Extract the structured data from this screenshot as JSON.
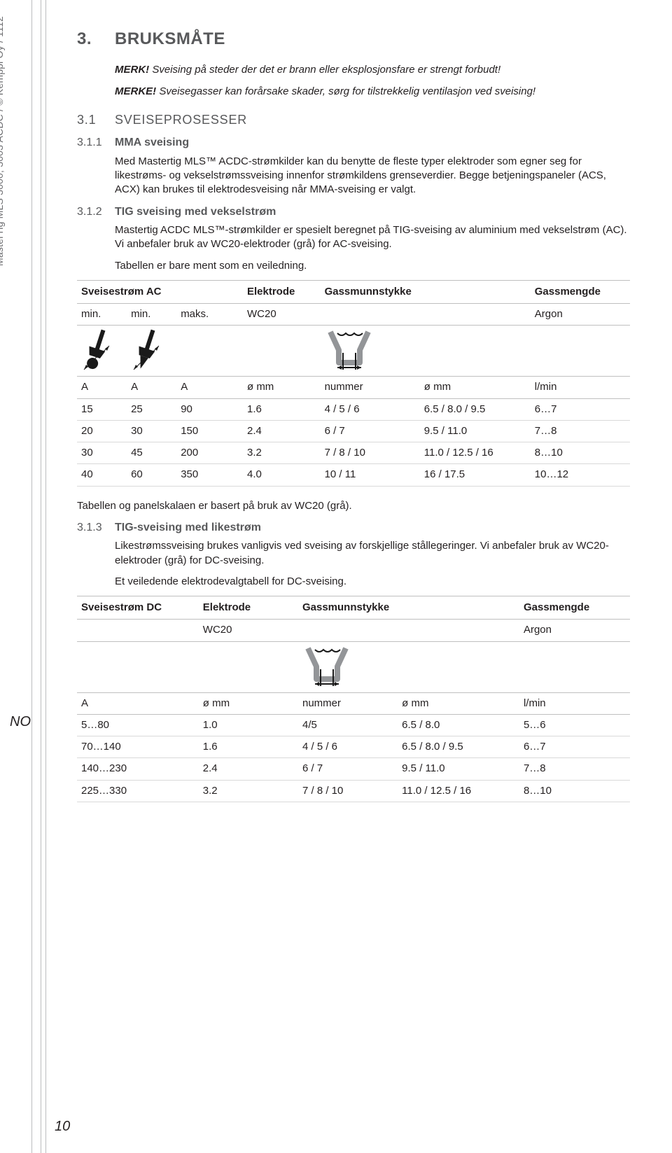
{
  "colors": {
    "text": "#231f20",
    "heading_gray": "#58595b",
    "rule": "#bbbcbe",
    "table_border": "#bfbfbf",
    "table_row_border": "#d9d9d9",
    "side_text": "#6d6e71",
    "icon_gray": "#939598",
    "icon_black": "#1a1a1a"
  },
  "side_text": "MasterTig MLS 3000, 3003 ACDC / © Kemppi Oy / 1112",
  "lang": "NO",
  "page_number": "10",
  "section": {
    "num": "3.",
    "title": "BRUKSMÅTE"
  },
  "note1": {
    "label": "MERK!",
    "text": "Sveising på steder der det er brann eller eksplosjonsfare er strengt forbudt!"
  },
  "note2": {
    "label": "MERKE!",
    "text": "Sveisegasser kan forårsake skader, sørg for tilstrekkelig ventilasjon ved sveising!"
  },
  "sub31": {
    "num": "3.1",
    "title": "SVEISEPROSESSER"
  },
  "sub311": {
    "num": "3.1.1",
    "title": "MMA sveising"
  },
  "p311": "Med Mastertig MLS™ ACDC-strømkilder kan du benytte de fleste typer elektroder som egner seg for likestrøms- og vekselstrømssveising innenfor strømkildens grenseverdier. Begge betjeningspaneler (ACS, ACX) kan brukes til elektrodesveising når MMA-sveising er valgt.",
  "sub312": {
    "num": "3.1.2",
    "title": "TIG sveising med vekselstrøm"
  },
  "p312a": "Mastertig ACDC MLS™-strømkilder er spesielt beregnet på TIG-sveising av aluminium med vekselstrøm (AC). Vi anbefaler bruk av WC20-elektroder (grå) for AC-sveising.",
  "p312b": "Tabellen er bare ment som en veiledning.",
  "tableAC": {
    "headers": [
      "Sveisestrøm AC",
      "Elektrode",
      "Gassmunnstykke",
      "Gassmengde"
    ],
    "sub": [
      "min.",
      "min.",
      "maks.",
      "WC20",
      "",
      "Argon"
    ],
    "units": [
      "A",
      "A",
      "A",
      "ø mm",
      "nummer",
      "ø mm",
      "l/min"
    ],
    "rows": [
      [
        "15",
        "25",
        "90",
        "1.6",
        "4 / 5 / 6",
        "6.5 / 8.0 / 9.5",
        "6…7"
      ],
      [
        "20",
        "30",
        "150",
        "2.4",
        "6 / 7",
        "9.5 / 11.0",
        "7…8"
      ],
      [
        "30",
        "45",
        "200",
        "3.2",
        "7 / 8 / 10",
        "11.0 / 12.5 / 16",
        "8…10"
      ],
      [
        "40",
        "60",
        "350",
        "4.0",
        "10 / 11",
        "16 / 17.5",
        "10…12"
      ]
    ],
    "col_widths": [
      "9%",
      "9%",
      "12%",
      "14%",
      "18%",
      "20%",
      "18%"
    ]
  },
  "p_between": "Tabellen og panelskalaen er basert på bruk av WC20 (grå).",
  "sub313": {
    "num": "3.1.3",
    "title": "TIG-sveising med likestrøm"
  },
  "p313a": "Likestrømssveising brukes vanligvis ved sveising av forskjellige stållegeringer. Vi anbefaler bruk av WC20-elektroder (grå) for DC-sveising.",
  "p313b": "Et veiledende elektrodevalgtabell for DC-sveising.",
  "tableDC": {
    "headers": [
      "Sveisestrøm DC",
      "Elektrode",
      "Gassmunnstykke",
      "Gassmengde"
    ],
    "sub": [
      "",
      "WC20",
      "",
      "Argon"
    ],
    "units": [
      "A",
      "ø mm",
      "nummer",
      "ø mm",
      "l/min"
    ],
    "rows": [
      [
        "5…80",
        "1.0",
        "4/5",
        "6.5 / 8.0",
        "5…6"
      ],
      [
        "70…140",
        "1.6",
        "4 / 5 / 6",
        "6.5 / 8.0 / 9.5",
        "6…7"
      ],
      [
        "140…230",
        "2.4",
        "6 / 7",
        "9.5 / 11.0",
        "7…8"
      ],
      [
        "225…330",
        "3.2",
        "7 / 8 / 10",
        "11.0 / 12.5 / 16",
        "8…10"
      ]
    ],
    "col_widths": [
      "22%",
      "18%",
      "18%",
      "22%",
      "20%"
    ]
  }
}
